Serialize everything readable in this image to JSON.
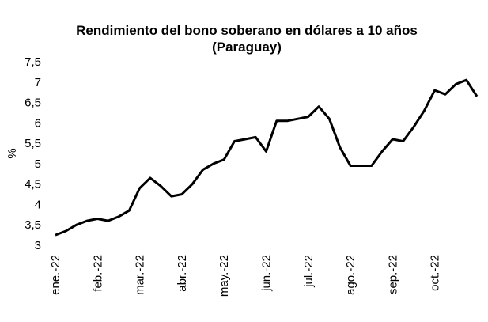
{
  "chart_data": {
    "type": "line",
    "title": "Rendimiento del bono soberano en dólares a 10 años",
    "subtitle": "(Paraguay)",
    "y_label": "%",
    "categories": [
      "ene.-22",
      null,
      null,
      null,
      "feb.-22",
      null,
      null,
      null,
      "mar.-22",
      null,
      null,
      null,
      "abr.-22",
      null,
      null,
      null,
      "may.-22",
      null,
      null,
      null,
      "jun.-22",
      null,
      null,
      null,
      "jul.-22",
      null,
      null,
      null,
      "ago.-22",
      null,
      null,
      null,
      "sep.-22",
      null,
      null,
      null,
      "oct.-22",
      null,
      null,
      null,
      null
    ],
    "series": [
      {
        "name": "Rendimiento",
        "color": "#000000",
        "values": [
          3.25,
          3.35,
          3.5,
          3.6,
          3.65,
          3.6,
          3.7,
          3.85,
          4.4,
          4.65,
          4.45,
          4.2,
          4.25,
          4.5,
          4.85,
          5.0,
          5.1,
          5.55,
          5.6,
          5.65,
          5.3,
          6.05,
          6.05,
          6.1,
          6.15,
          6.4,
          6.1,
          5.4,
          4.95,
          4.95,
          4.95,
          5.3,
          5.6,
          5.55,
          5.9,
          6.3,
          6.8,
          6.7,
          6.95,
          7.05,
          6.65
        ]
      }
    ],
    "ylim": [
      3,
      7.5
    ],
    "yticks": [
      3,
      {
        "value": 3.5,
        "label": "3,5"
      },
      4,
      {
        "value": 4.5,
        "label": "4,5"
      },
      5,
      {
        "value": 5.5,
        "label": "5,5"
      },
      6,
      {
        "value": 6.5,
        "label": "6,5"
      },
      7,
      {
        "value": 7.5,
        "label": "7,5"
      }
    ],
    "grid": false
  }
}
